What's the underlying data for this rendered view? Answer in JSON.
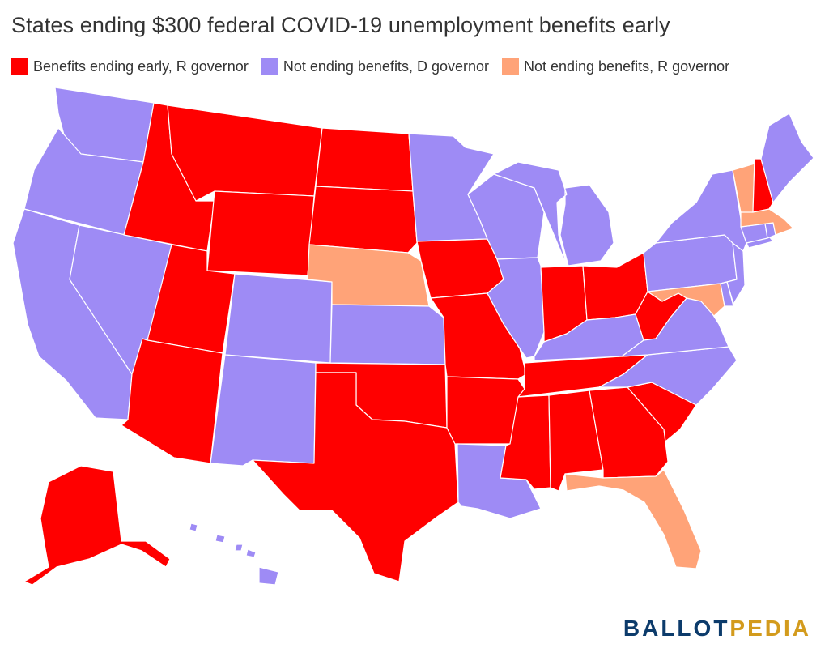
{
  "title": "States ending $300 federal COVID-19 unemployment benefits early",
  "legend": [
    {
      "label": "Benefits ending early, R governor",
      "color": "#ff0000",
      "key": "ending"
    },
    {
      "label": "Not ending benefits, D governor",
      "color": "#9e8bf5",
      "key": "not_d"
    },
    {
      "label": "Not ending benefits, R governor",
      "color": "#ffa378",
      "key": "not_r"
    }
  ],
  "colors": {
    "ending": "#ff0000",
    "not_d": "#9e8bf5",
    "not_r": "#ffa378"
  },
  "states": {
    "WA": "not_d",
    "OR": "not_d",
    "CA": "not_d",
    "NV": "not_d",
    "ID": "ending",
    "MT": "ending",
    "WY": "ending",
    "UT": "ending",
    "AZ": "ending",
    "CO": "not_d",
    "NM": "not_d",
    "ND": "ending",
    "SD": "ending",
    "NE": "not_r",
    "KS": "not_d",
    "OK": "ending",
    "TX": "ending",
    "MN": "not_d",
    "IA": "ending",
    "MO": "ending",
    "AR": "ending",
    "LA": "not_d",
    "WI": "not_d",
    "IL": "not_d",
    "MI": "not_d",
    "IN": "ending",
    "OH": "ending",
    "KY": "not_d",
    "TN": "ending",
    "MS": "ending",
    "AL": "ending",
    "GA": "ending",
    "FL": "not_r",
    "SC": "ending",
    "NC": "not_d",
    "VA": "not_d",
    "WV": "ending",
    "MD": "not_r",
    "DE": "not_d",
    "PA": "not_d",
    "NJ": "not_d",
    "NY": "not_d",
    "CT": "not_d",
    "RI": "not_d",
    "MA": "not_r",
    "VT": "not_r",
    "NH": "ending",
    "ME": "not_d",
    "AK": "ending",
    "HI": "not_d"
  },
  "brand": {
    "part1": "BALLOT",
    "part2": "PEDIA"
  }
}
